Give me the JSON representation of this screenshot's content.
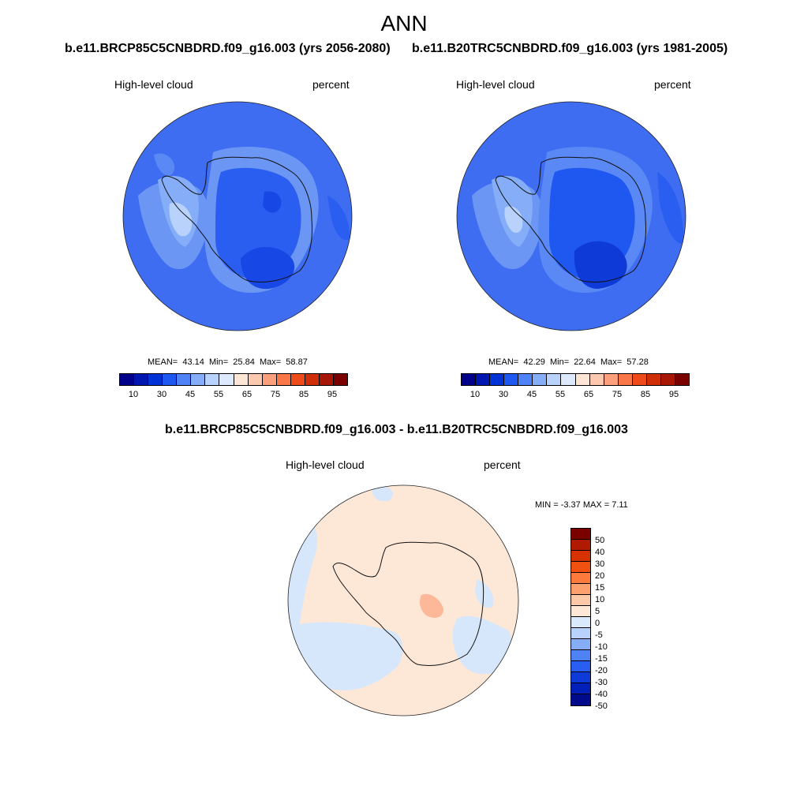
{
  "figure": {
    "title": "ANN",
    "left_panel": {
      "case": "b.e11.BRCP85C5CNBDRD.f09_g16.003 (yrs 2056-2080)",
      "variable": "High-level cloud",
      "units": "percent",
      "stats": {
        "mean_label": "MEAN=",
        "mean": "43.14",
        "min_label": "Min=",
        "min": "25.84",
        "max_label": "Max=",
        "max": "58.87"
      }
    },
    "right_panel": {
      "case": "b.e11.B20TRC5CNBDRD.f09_g16.003 (yrs 1981-2005)",
      "variable": "High-level cloud",
      "units": "percent",
      "stats": {
        "mean_label": "MEAN=",
        "mean": "42.29",
        "min_label": "Min=",
        "min": "22.64",
        "max_label": "Max=",
        "max": "57.28"
      }
    },
    "diff_panel": {
      "title": "b.e11.BRCP85C5CNBDRD.f09_g16.003 - b.e11.B20TRC5CNBDRD.f09_g16.003",
      "variable": "High-level cloud",
      "units": "percent",
      "stats_text": "MIN =  -3.37 MAX =   7.11"
    },
    "colorbar_field": {
      "colors": [
        "#00008a",
        "#0016b0",
        "#0032d6",
        "#1e58f0",
        "#4f82f6",
        "#86aef8",
        "#b8d2fb",
        "#dde9fc",
        "#fde6d6",
        "#fcc8b0",
        "#fb9f7c",
        "#f97748",
        "#ee4a1a",
        "#d02e08",
        "#a81706",
        "#7a0000"
      ],
      "tick_labels": [
        "10",
        "30",
        "45",
        "55",
        "65",
        "75",
        "85",
        "95"
      ]
    },
    "colorbar_diff": {
      "colors": [
        "#7a0000",
        "#b01a00",
        "#d63200",
        "#f05010",
        "#fb7a3c",
        "#fca070",
        "#fdc8a8",
        "#fde8d8",
        "#dbe9fc",
        "#b8d2fb",
        "#86aef8",
        "#4f82f6",
        "#2a5ef0",
        "#0e3ad8",
        "#0020b8",
        "#000a8a"
      ],
      "tick_labels": [
        "50",
        "40",
        "30",
        "20",
        "15",
        "10",
        "5",
        "0",
        "-5",
        "-10",
        "-15",
        "-20",
        "-30",
        "-40",
        "-50"
      ]
    }
  }
}
